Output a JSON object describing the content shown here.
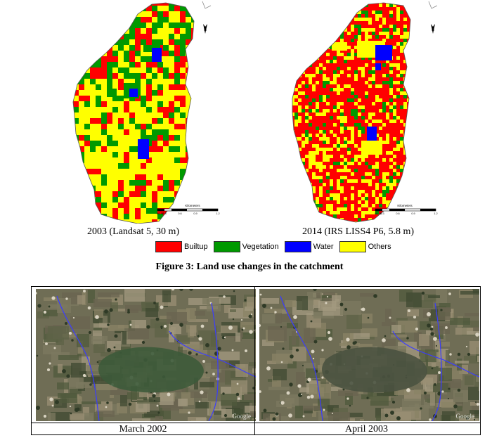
{
  "maps": [
    {
      "id": "2003",
      "caption": "2003 (Landsat 5,  30 m)",
      "scale_title": "Kilometers",
      "scale_ticks": [
        "0",
        "0.15",
        "0.3",
        "0.6",
        "0.9",
        "1.2"
      ],
      "north": "N"
    },
    {
      "id": "2014",
      "caption": "2014 (IRS LISS4 P6,  5.8 m)",
      "scale_title": "Kilometers",
      "scale_ticks": [
        "0",
        "0.15",
        "0.3",
        "0.6",
        "0.9",
        "1.2"
      ],
      "north": "N"
    }
  ],
  "legend": [
    {
      "label": "Builtup",
      "color": "#ff0000"
    },
    {
      "label": "Vegetation",
      "color": "#009900"
    },
    {
      "label": "Water",
      "color": "#0000ff"
    },
    {
      "label": "Others",
      "color": "#ffff00"
    }
  ],
  "figure_caption": "Figure 3: Land use changes in the catchment",
  "photos": [
    {
      "caption": "March 2002",
      "watermark": "Google"
    },
    {
      "caption": "April 2003",
      "watermark": "Google"
    }
  ]
}
